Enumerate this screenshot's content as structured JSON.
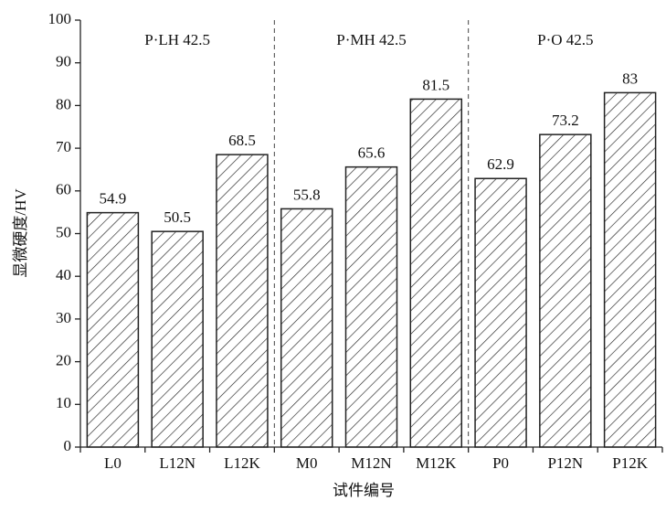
{
  "chart_data": {
    "type": "bar",
    "categories": [
      "L0",
      "L12N",
      "L12K",
      "M0",
      "M12N",
      "M12K",
      "P0",
      "P12N",
      "P12K"
    ],
    "values": [
      54.9,
      50.5,
      68.5,
      55.8,
      65.6,
      81.5,
      62.9,
      73.2,
      83
    ],
    "groups": [
      "P·LH 42.5",
      "P·MH 42.5",
      "P·O 42.5"
    ],
    "x_label": "试件编号",
    "y_label": "显微硬度/HV",
    "color": "#222222",
    "ylim": [
      0,
      100
    ],
    "yticks": [
      0,
      10,
      20,
      30,
      40,
      50,
      60,
      70,
      80,
      90,
      100
    ]
  }
}
